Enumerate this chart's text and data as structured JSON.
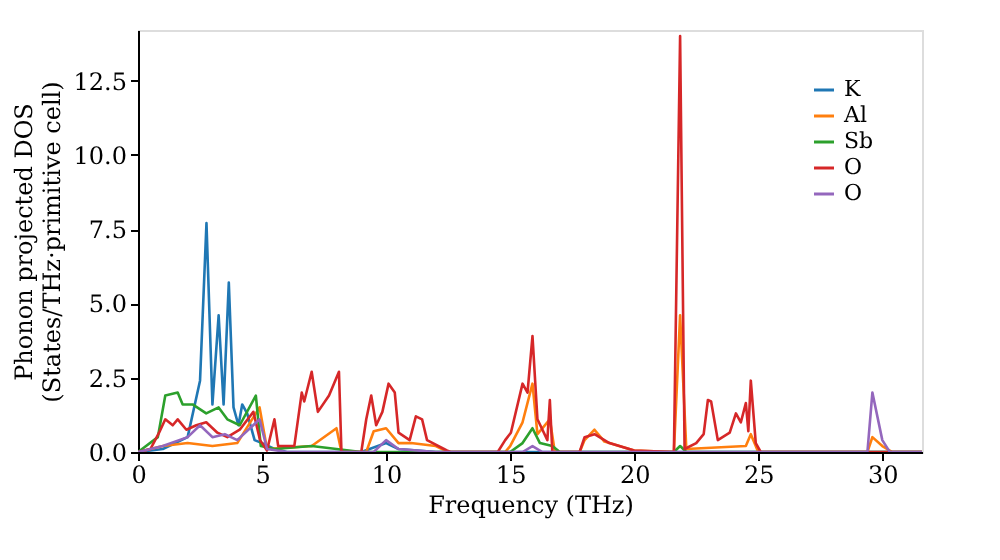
{
  "chart_data": {
    "type": "line",
    "xlabel": "Frequency (THz)",
    "ylabel": "Phonon projected DOS\n(States/THz·primitive cell)",
    "xlim": [
      0,
      31.6
    ],
    "ylim": [
      0,
      14.2
    ],
    "xticks": [
      0,
      5,
      10,
      15,
      20,
      25,
      30
    ],
    "yticks": [
      {
        "value": 0,
        "label": "0.0"
      },
      {
        "value": 2.5,
        "label": "2.5"
      },
      {
        "value": 5,
        "label": "5.0"
      },
      {
        "value": 7.5,
        "label": "7.5"
      },
      {
        "value": 10,
        "label": "10.0"
      },
      {
        "value": 12.5,
        "label": "12.5"
      }
    ],
    "grid": false,
    "legend": "top right",
    "line_style": "solid",
    "marker": "none",
    "series": [
      {
        "name": "K",
        "color": "#1f77b4",
        "x": [
          0,
          1,
          2,
          2.5,
          2.76,
          3.0,
          3.25,
          3.45,
          3.66,
          3.85,
          4.05,
          4.2,
          4.4,
          4.7,
          5,
          5.5,
          6,
          9,
          10,
          10.5,
          12,
          20,
          31.6
        ],
        "values": [
          0,
          0.1,
          0.5,
          2.4,
          7.7,
          1.6,
          4.6,
          1.6,
          5.7,
          1.5,
          0.9,
          1.6,
          1.3,
          0.4,
          0.3,
          0.1,
          0,
          0,
          0.3,
          0.1,
          0,
          0,
          0
        ]
      },
      {
        "name": "Al",
        "color": "#ff7f0e",
        "x": [
          0,
          1,
          2,
          3,
          4,
          4.9,
          5.2,
          7,
          8,
          8.2,
          9.2,
          9.5,
          10,
          10.5,
          11,
          12,
          12.5,
          14.8,
          15.0,
          15.5,
          15.9,
          16.1,
          16.6,
          16.8,
          17.8,
          18.0,
          18.4,
          18.8,
          20.0,
          21.6,
          21.85,
          22.1,
          24.5,
          24.7,
          25.0,
          29.4,
          29.6,
          30.0,
          30.4,
          31.6
        ],
        "values": [
          0,
          0.2,
          0.3,
          0.2,
          0.3,
          1.5,
          0.1,
          0.2,
          0.8,
          0,
          0,
          0.7,
          0.8,
          0.3,
          0.3,
          0.2,
          0,
          0,
          0.2,
          1.0,
          2.3,
          0.6,
          1.1,
          0,
          0,
          0.4,
          0.75,
          0.35,
          0.05,
          0,
          4.6,
          0.1,
          0.2,
          0.6,
          0,
          0,
          0.5,
          0.2,
          0,
          0
        ]
      },
      {
        "name": "Sb",
        "color": "#2ca02c",
        "x": [
          0,
          0.8,
          1.1,
          1.6,
          1.8,
          2.2,
          2.75,
          3.25,
          3.6,
          4.1,
          4.75,
          4.95,
          5.5,
          7,
          8,
          9,
          15.0,
          15.5,
          15.9,
          16.2,
          16.7,
          17,
          21.6,
          21.85,
          22.1,
          31.6
        ],
        "values": [
          0,
          0.5,
          1.9,
          2.0,
          1.6,
          1.6,
          1.3,
          1.5,
          1.1,
          0.9,
          1.9,
          0.2,
          0.1,
          0.2,
          0.1,
          0,
          0,
          0.3,
          0.8,
          0.3,
          0.2,
          0,
          0,
          0.2,
          0,
          0
        ]
      },
      {
        "name": "O",
        "color": "#d62728",
        "x": [
          0,
          0.5,
          0.85,
          1.1,
          1.4,
          1.6,
          1.95,
          2.35,
          2.75,
          3.2,
          3.6,
          4.1,
          4.65,
          4.92,
          5.2,
          5.5,
          5.65,
          6.3,
          6.6,
          6.7,
          7.0,
          7.25,
          7.7,
          8.1,
          8.2,
          9.0,
          9.2,
          9.4,
          9.6,
          9.85,
          10.1,
          10.35,
          10.5,
          10.95,
          11.2,
          11.45,
          11.65,
          12.45,
          12.6,
          14.5,
          14.8,
          15.03,
          15.5,
          15.7,
          15.9,
          16.1,
          16.5,
          16.6,
          16.7,
          17.8,
          18.0,
          18.4,
          19.0,
          20.0,
          21.6,
          21.85,
          22.03,
          22.5,
          22.8,
          22.97,
          23.1,
          23.37,
          23.85,
          24.1,
          24.3,
          24.5,
          24.6,
          24.7,
          24.9,
          25.1,
          31.6
        ],
        "values": [
          0,
          0.1,
          0.65,
          1.1,
          0.9,
          1.1,
          0.75,
          0.9,
          1.0,
          0.65,
          0.5,
          0.75,
          1.35,
          0.4,
          0.05,
          1.1,
          0.2,
          0.2,
          2.0,
          1.7,
          2.7,
          1.35,
          1.9,
          2.7,
          0,
          0,
          1.1,
          1.9,
          0.9,
          1.35,
          2.3,
          2.0,
          0.65,
          0.4,
          1.2,
          1.1,
          0.4,
          0.05,
          0,
          0,
          0.4,
          0.65,
          2.3,
          2.0,
          3.9,
          1.1,
          0.4,
          1.75,
          0,
          0,
          0.5,
          0.6,
          0.3,
          0.05,
          0,
          14.0,
          0.1,
          0.3,
          0.6,
          1.75,
          1.7,
          0.4,
          0.65,
          1.3,
          1.0,
          1.65,
          0.7,
          2.4,
          0.3,
          0,
          0
        ]
      },
      {
        "name": "O",
        "color": "#9467bd",
        "x": [
          0,
          1,
          2,
          2.5,
          3.0,
          3.5,
          4.0,
          4.9,
          5.2,
          6,
          9.5,
          10.0,
          10.5,
          12,
          15.5,
          15.9,
          16.3,
          29.4,
          29.6,
          30.0,
          30.3,
          31.6
        ],
        "values": [
          0,
          0.2,
          0.5,
          0.9,
          0.5,
          0.6,
          0.4,
          1.1,
          0.1,
          0,
          0,
          0.4,
          0.1,
          0,
          0,
          0.2,
          0,
          0,
          2.0,
          0.4,
          0,
          0
        ]
      }
    ]
  }
}
